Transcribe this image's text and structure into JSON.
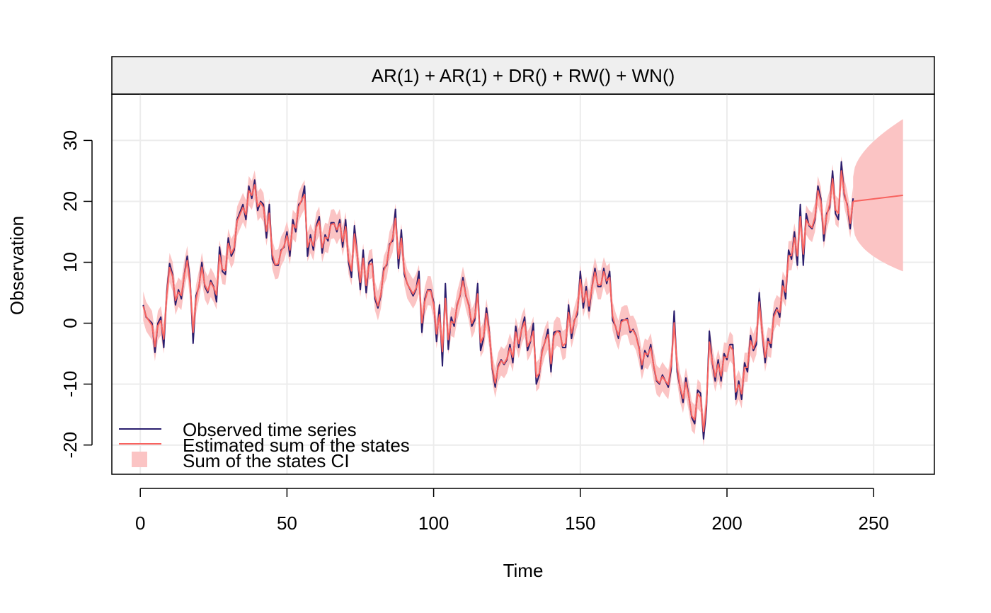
{
  "chart_data": {
    "type": "line",
    "title": "AR(1) + AR(1) + DR() + RW() + WN()",
    "xlabel": "Time",
    "ylabel": "Observation",
    "xlim": [
      -9.7,
      270.7
    ],
    "ylim": [
      -24.8,
      37.6
    ],
    "xticks": [
      0,
      50,
      100,
      150,
      200,
      250
    ],
    "yticks": [
      -20,
      -10,
      0,
      10,
      20,
      30
    ],
    "grid": true,
    "legend_position": "bottom-left",
    "legend": {
      "observed": "Observed time series",
      "estimated": "Estimated sum of the states",
      "ci": "Sum of the states CI"
    },
    "colors": {
      "observed": "#2a1e6e",
      "estimated": "#f8635f",
      "ci": "#fbc4c4",
      "grid": "#ececec",
      "strip": "#efefef"
    },
    "ci_halfwidth": 2.4,
    "observed_anchors": [
      [
        1,
        3
      ],
      [
        2,
        1
      ],
      [
        4,
        0
      ],
      [
        5,
        -4.8
      ],
      [
        6,
        0
      ],
      [
        7,
        1
      ],
      [
        8,
        -4
      ],
      [
        9,
        5
      ],
      [
        10,
        9.8
      ],
      [
        11,
        8
      ],
      [
        12,
        3
      ],
      [
        13,
        5.5
      ],
      [
        14,
        4
      ],
      [
        15,
        8
      ],
      [
        16,
        11
      ],
      [
        17,
        7
      ],
      [
        18,
        -3.3
      ],
      [
        19,
        4.5
      ],
      [
        20,
        6
      ],
      [
        21,
        10
      ],
      [
        22,
        6
      ],
      [
        23,
        5
      ],
      [
        24,
        7
      ],
      [
        25,
        6
      ],
      [
        26,
        3.5
      ],
      [
        27,
        12.5
      ],
      [
        28,
        8.5
      ],
      [
        29,
        8
      ],
      [
        30,
        14
      ],
      [
        31,
        11
      ],
      [
        32,
        12
      ],
      [
        33,
        17
      ],
      [
        35,
        19.5
      ],
      [
        36,
        17
      ],
      [
        37,
        22.5
      ],
      [
        38,
        20.5
      ],
      [
        39,
        23.5
      ],
      [
        40,
        18.5
      ],
      [
        41,
        20
      ],
      [
        42,
        19.5
      ],
      [
        43,
        14
      ],
      [
        44,
        19.5
      ],
      [
        45,
        10.5
      ],
      [
        46,
        9.5
      ],
      [
        47,
        9.5
      ],
      [
        48,
        12
      ],
      [
        49,
        12.5
      ],
      [
        50,
        15
      ],
      [
        51,
        11
      ],
      [
        52,
        17
      ],
      [
        53,
        15
      ],
      [
        54,
        19.5
      ],
      [
        55,
        20
      ],
      [
        56,
        22.5
      ],
      [
        57,
        11
      ],
      [
        58,
        14.5
      ],
      [
        59,
        12
      ],
      [
        60,
        16
      ],
      [
        61,
        17.5
      ],
      [
        62,
        11.5
      ],
      [
        63,
        14.5
      ],
      [
        64,
        13.5
      ],
      [
        65,
        16.5
      ],
      [
        66,
        16.5
      ],
      [
        67,
        15
      ],
      [
        68,
        17
      ],
      [
        69,
        12.5
      ],
      [
        70,
        17
      ],
      [
        71,
        10
      ],
      [
        72,
        7.5
      ],
      [
        73,
        16
      ],
      [
        74,
        11
      ],
      [
        75,
        5.5
      ],
      [
        76,
        12
      ],
      [
        77,
        5
      ],
      [
        78,
        10
      ],
      [
        79,
        10.5
      ],
      [
        80,
        4
      ],
      [
        81,
        2.5
      ],
      [
        82,
        4.5
      ],
      [
        83,
        9
      ],
      [
        84,
        9.5
      ],
      [
        85,
        13
      ],
      [
        86,
        13.5
      ],
      [
        87,
        18.7
      ],
      [
        88,
        9
      ],
      [
        89,
        15.3
      ],
      [
        90,
        8
      ],
      [
        91,
        6.5
      ],
      [
        93,
        4.5
      ],
      [
        94,
        5.5
      ],
      [
        95,
        8.5
      ],
      [
        96,
        -1.5
      ],
      [
        97,
        4
      ],
      [
        98,
        5.5
      ],
      [
        99,
        5.5
      ],
      [
        100,
        3.5
      ],
      [
        101,
        -3
      ],
      [
        102,
        3
      ],
      [
        103,
        -7
      ],
      [
        104,
        6.5
      ],
      [
        105,
        -4.3
      ],
      [
        106,
        1
      ],
      [
        107,
        -0.5
      ],
      [
        108,
        3
      ],
      [
        109,
        4.5
      ],
      [
        110,
        7.5
      ],
      [
        111,
        4.5
      ],
      [
        112,
        3
      ],
      [
        113,
        -0.5
      ],
      [
        114,
        0.5
      ],
      [
        115,
        6.5
      ],
      [
        116,
        -4.5
      ],
      [
        117,
        -2.5
      ],
      [
        118,
        2.5
      ],
      [
        119,
        -1.5
      ],
      [
        120,
        -7.5
      ],
      [
        121,
        -10.5
      ],
      [
        122,
        -7
      ],
      [
        123,
        -6
      ],
      [
        124,
        -6.8
      ],
      [
        125,
        -6
      ],
      [
        126,
        -3.5
      ],
      [
        127,
        -6.5
      ],
      [
        128,
        -0.5
      ],
      [
        129,
        -4
      ],
      [
        130,
        -1
      ],
      [
        131,
        1
      ],
      [
        132,
        -4.5
      ],
      [
        133,
        -3
      ],
      [
        134,
        0
      ],
      [
        135,
        -10
      ],
      [
        136,
        -8.5
      ],
      [
        137,
        -4.5
      ],
      [
        138,
        -3
      ],
      [
        139,
        -1
      ],
      [
        140,
        -8
      ],
      [
        141,
        -1.5
      ],
      [
        142,
        -1.3
      ],
      [
        143,
        -1.3
      ],
      [
        144,
        -4
      ],
      [
        145,
        -4
      ],
      [
        146,
        3
      ],
      [
        147,
        -2.5
      ],
      [
        148,
        0.5
      ],
      [
        149,
        1.5
      ],
      [
        150,
        8.5
      ],
      [
        151,
        2.5
      ],
      [
        152,
        6
      ],
      [
        153,
        2
      ],
      [
        154,
        6
      ],
      [
        155,
        9
      ],
      [
        156,
        6
      ],
      [
        157,
        6
      ],
      [
        158,
        9
      ],
      [
        159,
        6.5
      ],
      [
        160,
        8.5
      ],
      [
        161,
        0.5
      ],
      [
        162,
        -0.5
      ],
      [
        163,
        -2.5
      ],
      [
        164,
        0.5
      ],
      [
        165,
        0.5
      ],
      [
        166,
        0.8
      ],
      [
        167,
        -1.5
      ],
      [
        168,
        -1
      ],
      [
        169,
        -2
      ],
      [
        170,
        -4
      ],
      [
        171,
        -7.5
      ],
      [
        172,
        -4.5
      ],
      [
        173,
        -5.5
      ],
      [
        174,
        -3.5
      ],
      [
        175,
        -7
      ],
      [
        176,
        -9.5
      ],
      [
        177,
        -10
      ],
      [
        178,
        -8.5
      ],
      [
        179,
        -9.5
      ],
      [
        180,
        -10.5
      ],
      [
        181,
        -7.5
      ],
      [
        182,
        2
      ],
      [
        183,
        -8
      ],
      [
        184,
        -10.5
      ],
      [
        185,
        -13
      ],
      [
        186,
        -9
      ],
      [
        187,
        -12
      ],
      [
        188,
        -15.5
      ],
      [
        189,
        -16.5
      ],
      [
        190,
        -11
      ],
      [
        191,
        -11.5
      ],
      [
        192,
        -19
      ],
      [
        193,
        -14
      ],
      [
        194,
        -1.3
      ],
      [
        195,
        -6.5
      ],
      [
        196,
        -9.5
      ],
      [
        197,
        -6
      ],
      [
        198,
        -9.5
      ],
      [
        199,
        -5
      ],
      [
        200,
        -6
      ],
      [
        201,
        -3.5
      ],
      [
        202,
        -3.5
      ],
      [
        203,
        -12.5
      ],
      [
        204,
        -9.5
      ],
      [
        205,
        -12.5
      ],
      [
        206,
        -6.5
      ],
      [
        207,
        -8
      ],
      [
        208,
        -2
      ],
      [
        209,
        -4.5
      ],
      [
        210,
        -3.5
      ],
      [
        211,
        5
      ],
      [
        212,
        -1.5
      ],
      [
        213,
        -6.5
      ],
      [
        214,
        -2.5
      ],
      [
        215,
        -4
      ],
      [
        216,
        1.5
      ],
      [
        217,
        2.5
      ],
      [
        218,
        1
      ],
      [
        219,
        7
      ],
      [
        220,
        4
      ],
      [
        221,
        12
      ],
      [
        222,
        10.5
      ],
      [
        223,
        15
      ],
      [
        224,
        9.5
      ],
      [
        225,
        19.5
      ],
      [
        226,
        9.5
      ],
      [
        227,
        18
      ],
      [
        228,
        16
      ],
      [
        229,
        15.5
      ],
      [
        230,
        17
      ],
      [
        231,
        22.5
      ],
      [
        232,
        20.5
      ],
      [
        233,
        13.5
      ],
      [
        234,
        18
      ],
      [
        235,
        19
      ],
      [
        236,
        25
      ],
      [
        237,
        18
      ],
      [
        238,
        17
      ],
      [
        239,
        26.5
      ],
      [
        240,
        21
      ],
      [
        241,
        19.5
      ],
      [
        242,
        15.5
      ],
      [
        243,
        20.5
      ]
    ],
    "forecast": {
      "x": [
        243,
        260
      ],
      "y": [
        20,
        21
      ],
      "ci_halfwidth_start": 4,
      "ci_halfwidth_end": 12.5
    }
  }
}
